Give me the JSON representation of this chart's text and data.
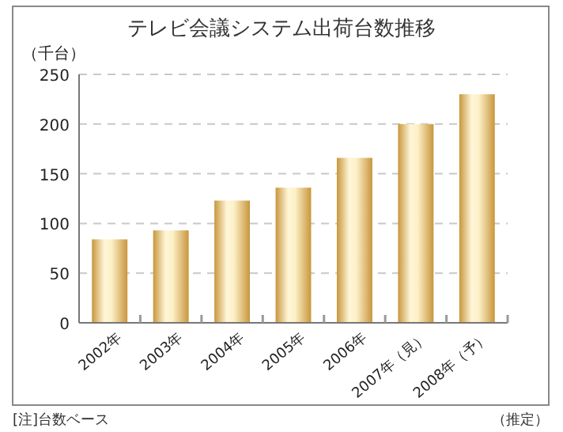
{
  "chart_data": {
    "type": "bar",
    "title": "テレビ会議システム出荷台数推移",
    "ylabel": "（千台）",
    "categories": [
      "2002年",
      "2003年",
      "2004年",
      "2005年",
      "2006年",
      "2007年（見）",
      "2008年（予）"
    ],
    "values": [
      84,
      93,
      123,
      136,
      166,
      200,
      230
    ],
    "color": "#c8963c",
    "ylim": [
      0,
      250
    ],
    "yticks": [
      0,
      50,
      100,
      150,
      200,
      250
    ],
    "grid": "y",
    "annotations": [
      "[注]台数ベース",
      "（推定）"
    ]
  }
}
